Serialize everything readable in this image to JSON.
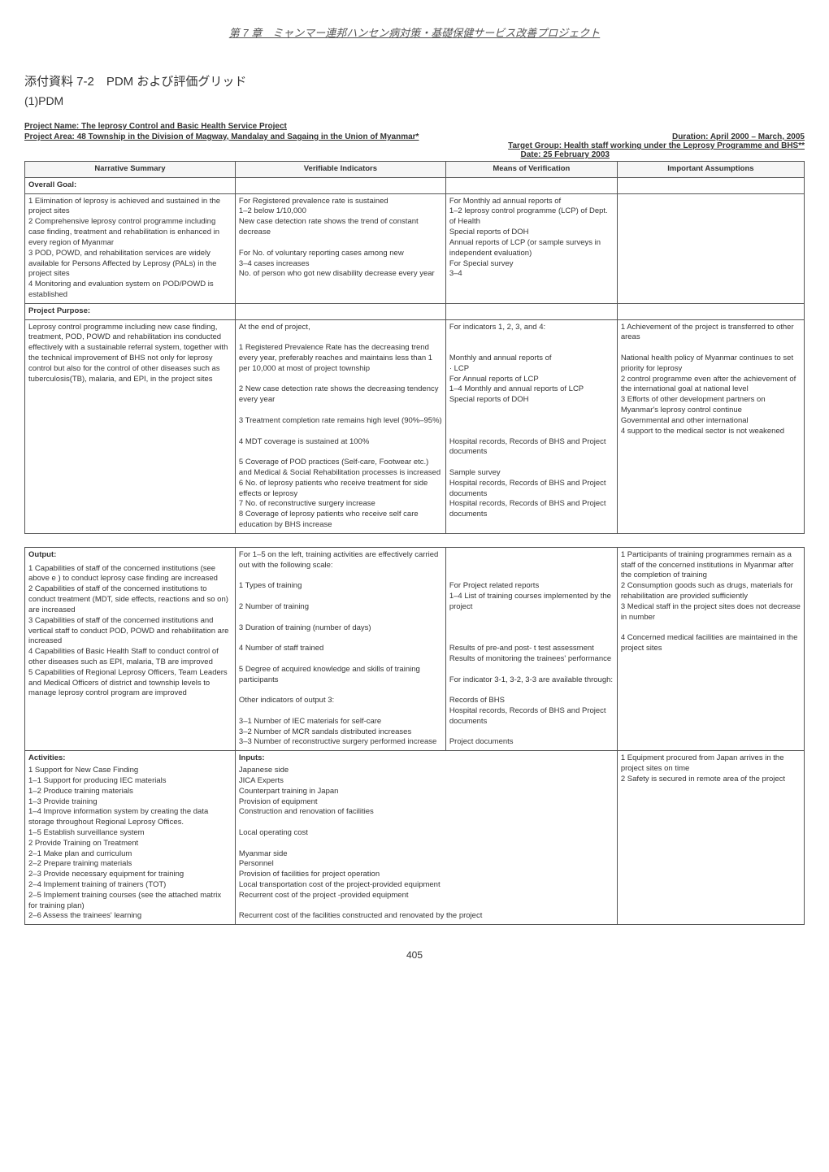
{
  "chapter_title": "第 7 章　ミャンマー連邦ハンセン病対策・基礎保健サービス改善プロジェクト",
  "section_title": "添付資料 7-2　PDM および評価グリッド",
  "subsection": "(1)PDM",
  "project_name": "Project Name: The leprosy Control and Basic Health Service Project",
  "project_area": "Project Area: 48 Township in the Division of Magway, Mandalay and Sagaing in the Union of Myanmar*",
  "duration": "Duration: April 2000 – March, 2005",
  "target_group": "Target Group: Health staff working under the Leprosy Programme and BHS**",
  "date": "Date: 25 February 2003",
  "headers": {
    "col1": "Narrative Summary",
    "col2": "Verifiable Indicators",
    "col3": "Means of Verification",
    "col4": "Important Assumptions"
  },
  "overall_goal": {
    "label": "Overall Goal:",
    "narrative": "1 Elimination of leprosy is achieved and sustained in the project sites\n2 Comprehensive leprosy control programme including case finding, treatment and rehabilitation is enhanced in every region of Myanmar\n3 POD, POWD, and rehabilitation services are widely available for Persons Affected by Leprosy (PALs) in the project sites\n4 Monitoring and evaluation system on POD/POWD is established",
    "indicators": "For Registered prevalence rate is sustained\n1–2 below 1/10,000\nNew case detection rate shows the trend of constant decrease\n\nFor No. of voluntary reporting cases among new\n3–4 cases increases\nNo. of person who got new disability decrease every year",
    "verification": "For Monthly ad annual reports of\n1–2 leprosy control programme (LCP) of Dept. of Health\nSpecial reports of DOH\nAnnual reports of LCP (or sample surveys in independent evaluation)\nFor Special survey\n3–4",
    "assumptions": ""
  },
  "project_purpose": {
    "label": "Project Purpose:",
    "narrative": "Leprosy control programme including new case finding, treatment, POD, POWD and rehabilitation ins conducted effectively with a sustainable referral system, together with the technical improvement of BHS not only for leprosy control but also for the control of other diseases such as tuberculosis(TB), malaria, and EPI, in the project sites",
    "indicators": "At the end of project,\n\n1 Registered Prevalence Rate has the decreasing trend every year, preferably reaches and maintains less than 1 per 10,000 at most of project township\n\n2 New case detection rate shows the decreasing tendency every year\n\n3 Treatment completion rate remains high level (90%–95%)\n\n4 MDT coverage is sustained at 100%\n\n5 Coverage of POD practices (Self-care, Footwear etc.) and Medical & Social Rehabilitation processes is increased\n6 No. of leprosy patients who receive treatment for side effects or leprosy\n7 No. of reconstructive surgery increase\n8 Coverage of leprosy patients who receive self care education by BHS increase",
    "verification": "For indicators 1, 2, 3, and 4:\n\n\nMonthly and annual reports of\n· LCP\nFor Annual reports of LCP\n1–4 Monthly and annual reports of LCP\nSpecial reports of DOH\n\n\n\nHospital records, Records of BHS and Project documents\n\nSample survey\nHospital records, Records of BHS and Project documents\nHospital records, Records of BHS and Project documents",
    "assumptions": "1 Achievement of the project is transferred to other areas\n\nNational health policy of Myanmar continues to set priority for leprosy\n2 control programme even after the achievement of the international goal at national level\n3 Efforts of other development partners on Myanmar's leprosy control continue\nGovernmental and other international\n4 support to the medical sector is not weakened"
  },
  "output": {
    "label": "Output:",
    "narrative": "1 Capabilities of staff of the concerned institutions (see above e ) to conduct leprosy case finding are increased\n2 Capabilities of staff of the concerned institutions to conduct treatment (MDT, side effects, reactions and so on) are increased\n3 Capabilities of staff of the concerned institutions and vertical staff to conduct POD, POWD and rehabilitation are increased\n4 Capabilities of Basic Health Staff to conduct control of other diseases such as EPI, malaria, TB are improved\n5 Capabilities of Regional Leprosy Officers, Team Leaders and Medical Officers of district and township levels to manage leprosy control program are improved",
    "indicators": "For 1–5 on the left, training activities are effectively carried out with the following scale:\n\n1 Types of training\n\n2 Number of training\n\n3 Duration of training (number of days)\n\n4 Number of staff trained\n\n5 Degree of acquired knowledge and skills of training participants\n\nOther indicators of output 3:\n\n3–1  Number of IEC materials for self-care\n3–2  Number of MCR sandals distributed increases\n3–3  Number of reconstructive surgery performed increase",
    "verification": "\n\n\nFor Project related reports\n1–4 List of training courses implemented by the project\n\n\n\nResults of pre-and post- t test assessment\nResults of monitoring the trainees' performance\n\nFor indicator 3-1, 3-2, 3-3 are available through:\n\nRecords of BHS\nHospital records, Records of BHS and Project documents\n\nProject documents",
    "assumptions": "1 Participants of training programmes remain as a staff of the concerned institutions in Myanmar after the completion of training\n2 Consumption goods such as drugs, materials for rehabilitation are provided sufficiently\n3 Medical staff in the project sites does not decrease in number\n\n4 Concerned medical facilities are maintained in the project sites"
  },
  "activities": {
    "label": "Activities:",
    "narrative": "1  Support for New Case Finding\n1–1 Support for producing IEC materials\n1–2 Produce training materials\n1–3 Provide training\n1–4 Improve information system by creating the data storage throughout Regional Leprosy Offices.\n1–5 Establish surveillance system\n2  Provide Training on Treatment\n2–1 Make plan and curriculum\n2–2 Prepare training materials\n2–3 Provide necessary equipment for training\n2–4 Implement training of trainers (TOT)\n2–5 Implement training courses (see the attached matrix for training plan)\n2–6 Assess the trainees' learning",
    "inputs_label": "Inputs:",
    "inputs": "Japanese side\n  JICA Experts\n  Counterpart training in Japan\n  Provision of equipment\n  Construction and renovation of facilities\n\n  Local operating cost\n\nMyanmar side\n  Personnel\n  Provision of facilities for project operation\n  Local transportation cost of the project-provided equipment\n  Recurrent cost of the project -provided equipment\n\n  Recurrent cost of the facilities constructed and renovated by the project",
    "assumptions": "1  Equipment procured from Japan arrives in the project sites on time\n2  Safety is secured in remote area of the project"
  },
  "page_number": "405",
  "col_widths": {
    "c1": "27%",
    "c2": "27%",
    "c3": "22%",
    "c4": "24%"
  }
}
